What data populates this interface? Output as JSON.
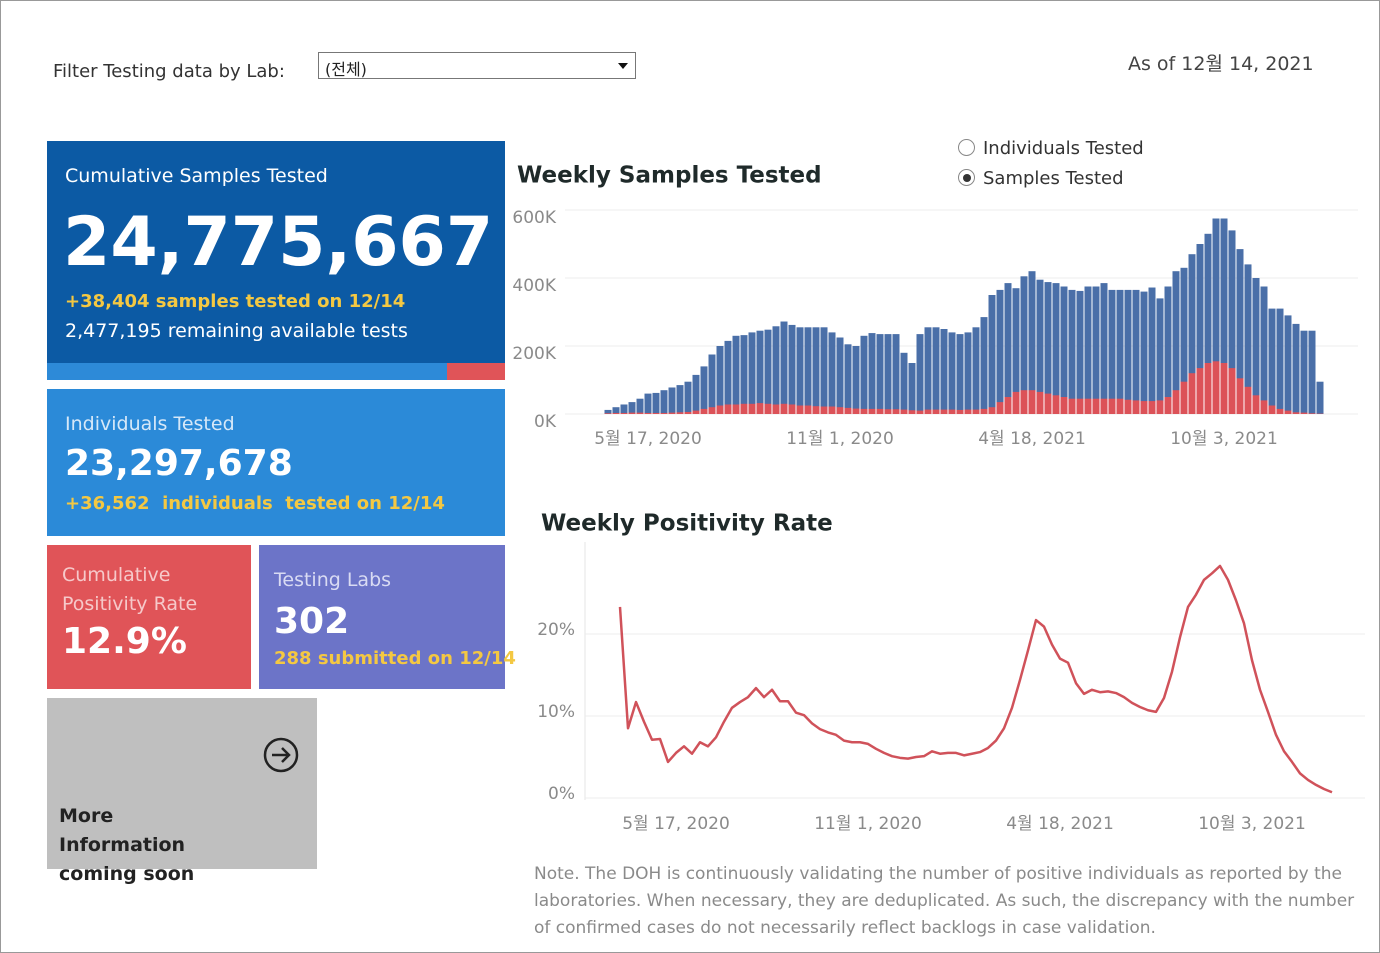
{
  "filter": {
    "label": "Filter Testing data by Lab:",
    "value": "(전체)"
  },
  "as_of": "As of 12월 14, 2021",
  "tiles": [
    {
      "title": "Cumulative Samples Tested",
      "value": "24,775,667",
      "change": "+38,404 samples tested on 12/14",
      "note": "2,477,195 remaining available tests"
    },
    {
      "title": "Individuals Tested",
      "value": "23,297,678",
      "change": "+36,562  individuals  tested on 12/14"
    },
    {
      "title": "Cumulative Positivity Rate",
      "value": "12.9%"
    },
    {
      "title": "Testing Labs",
      "value": "302",
      "change": "288 submitted on 12/14"
    },
    {
      "title": "More Information coming soon"
    }
  ],
  "toggle": {
    "options": [
      "Individuals Tested",
      "Samples Tested"
    ],
    "selected": 1
  },
  "note": "Note. The DOH is continuously validating the number of positive individuals as reported by the laboratories. When necessary, they are deduplicated. As such, the discrepancy with the number of confirmed cases do not necessarily reflect backlogs in case validation.",
  "chart_data": [
    {
      "type": "bar",
      "title": "Weekly Samples Tested",
      "categories": [
        null,
        null,
        null,
        null,
        null,
        "5월 17, 2020",
        null,
        null,
        null,
        null,
        null,
        null,
        null,
        null,
        null,
        null,
        null,
        null,
        null,
        null,
        null,
        null,
        null,
        null,
        null,
        null,
        null,
        null,
        null,
        "11월 1, 2020",
        null,
        null,
        null,
        null,
        null,
        null,
        null,
        null,
        null,
        null,
        null,
        null,
        null,
        null,
        null,
        null,
        null,
        null,
        null,
        null,
        null,
        null,
        null,
        "4월 18, 2021",
        null,
        null,
        null,
        null,
        null,
        null,
        null,
        null,
        null,
        null,
        null,
        null,
        null,
        null,
        null,
        null,
        null,
        null,
        null,
        null,
        null,
        null,
        null,
        "10월 3, 2021",
        null,
        null,
        null,
        null,
        null,
        null,
        null,
        null,
        null,
        null,
        null,
        null
      ],
      "series": [
        {
          "color": "#4a6fa8",
          "values": [
            12000,
            20000,
            28000,
            35000,
            45000,
            60000,
            62000,
            70000,
            78000,
            85000,
            95000,
            115000,
            140000,
            175000,
            200000,
            215000,
            230000,
            232000,
            240000,
            245000,
            248000,
            258000,
            272000,
            262000,
            255000,
            255000,
            255000,
            255000,
            240000,
            225000,
            205000,
            200000,
            230000,
            238000,
            235000,
            235000,
            235000,
            180000,
            150000,
            235000,
            255000,
            255000,
            250000,
            240000,
            235000,
            240000,
            255000,
            285000,
            350000,
            365000,
            385000,
            370000,
            405000,
            420000,
            395000,
            388000,
            385000,
            375000,
            365000,
            362000,
            375000,
            375000,
            385000,
            365000,
            365000,
            365000,
            365000,
            360000,
            372000,
            340000,
            375000,
            420000,
            430000,
            470000,
            500000,
            530000,
            575000,
            575000,
            540000,
            485000,
            440000,
            400000,
            375000,
            310000,
            310000,
            290000,
            265000,
            245000,
            245000,
            95000
          ]
        },
        {
          "color": "#dc5258",
          "values": [
            2000,
            3000,
            3000,
            4000,
            4000,
            3000,
            3000,
            3000,
            4000,
            5000,
            6000,
            10000,
            15000,
            20000,
            25000,
            28000,
            28000,
            30000,
            30000,
            32000,
            30000,
            28000,
            30000,
            28000,
            25000,
            25000,
            23000,
            22000,
            22000,
            20000,
            18000,
            16000,
            15000,
            15000,
            15000,
            14000,
            14000,
            13000,
            11000,
            10000,
            13000,
            13000,
            13000,
            13000,
            12000,
            13000,
            13000,
            15000,
            20000,
            35000,
            50000,
            65000,
            70000,
            70000,
            65000,
            60000,
            55000,
            50000,
            45000,
            45000,
            45000,
            45000,
            45000,
            45000,
            45000,
            42000,
            40000,
            38000,
            38000,
            40000,
            50000,
            70000,
            95000,
            120000,
            135000,
            150000,
            155000,
            150000,
            135000,
            105000,
            80000,
            55000,
            40000,
            25000,
            15000,
            10000,
            5000,
            4000,
            2000,
            1000
          ]
        }
      ],
      "ylim": [
        0,
        600000
      ],
      "yticks": [
        {
          "value": 0,
          "label": "0K"
        },
        {
          "value": 200000,
          "label": "200K"
        },
        {
          "value": 400000,
          "label": "400K"
        },
        {
          "value": 600000,
          "label": "600K"
        }
      ],
      "grid": true
    },
    {
      "type": "line",
      "title": "Weekly Positivity Rate",
      "categories": [
        null,
        null,
        null,
        null,
        null,
        null,
        null,
        "5월 17, 2020",
        null,
        null,
        null,
        null,
        null,
        null,
        null,
        null,
        null,
        null,
        null,
        null,
        null,
        null,
        null,
        null,
        null,
        null,
        null,
        null,
        null,
        null,
        null,
        "11월 1, 2020",
        null,
        null,
        null,
        null,
        null,
        null,
        null,
        null,
        null,
        null,
        null,
        null,
        null,
        null,
        null,
        null,
        null,
        null,
        null,
        null,
        null,
        null,
        null,
        "4월 18, 2021",
        null,
        null,
        null,
        null,
        null,
        null,
        null,
        null,
        null,
        null,
        null,
        null,
        null,
        null,
        null,
        null,
        null,
        null,
        null,
        null,
        null,
        null,
        null,
        "10월 3, 2021",
        null,
        null,
        null,
        null,
        null,
        null,
        null,
        null,
        null,
        null
      ],
      "series": [
        {
          "color": "#d0525a",
          "values": [
            23.3,
            8.5,
            11.7,
            9.3,
            7.1,
            7.2,
            4.4,
            5.5,
            6.3,
            5.4,
            6.8,
            6.3,
            7.4,
            9.3,
            11.0,
            11.7,
            12.3,
            13.4,
            12.3,
            13.2,
            11.8,
            11.8,
            10.4,
            10.1,
            9.1,
            8.4,
            8.0,
            7.7,
            7.0,
            6.8,
            6.8,
            6.6,
            6.0,
            5.5,
            5.1,
            4.9,
            4.8,
            5.0,
            5.1,
            5.7,
            5.4,
            5.5,
            5.5,
            5.2,
            5.4,
            5.6,
            6.1,
            7.0,
            8.5,
            11.0,
            14.4,
            18.0,
            21.7,
            20.9,
            18.7,
            17.0,
            16.5,
            14.0,
            12.7,
            13.2,
            12.9,
            13.0,
            12.8,
            12.3,
            11.6,
            11.1,
            10.7,
            10.5,
            12.2,
            15.4,
            19.6,
            23.3,
            24.8,
            26.6,
            27.4,
            28.3,
            26.6,
            24.1,
            21.3,
            16.8,
            13.2,
            10.5,
            7.7,
            5.7,
            4.4,
            3.0,
            2.2,
            1.6,
            1.1,
            0.7
          ]
        }
      ],
      "ylim": [
        0,
        30
      ],
      "yticks": [
        {
          "value": 0,
          "label": "0%"
        },
        {
          "value": 10,
          "label": "10%"
        },
        {
          "value": 20,
          "label": "20%"
        }
      ],
      "grid": true
    }
  ]
}
